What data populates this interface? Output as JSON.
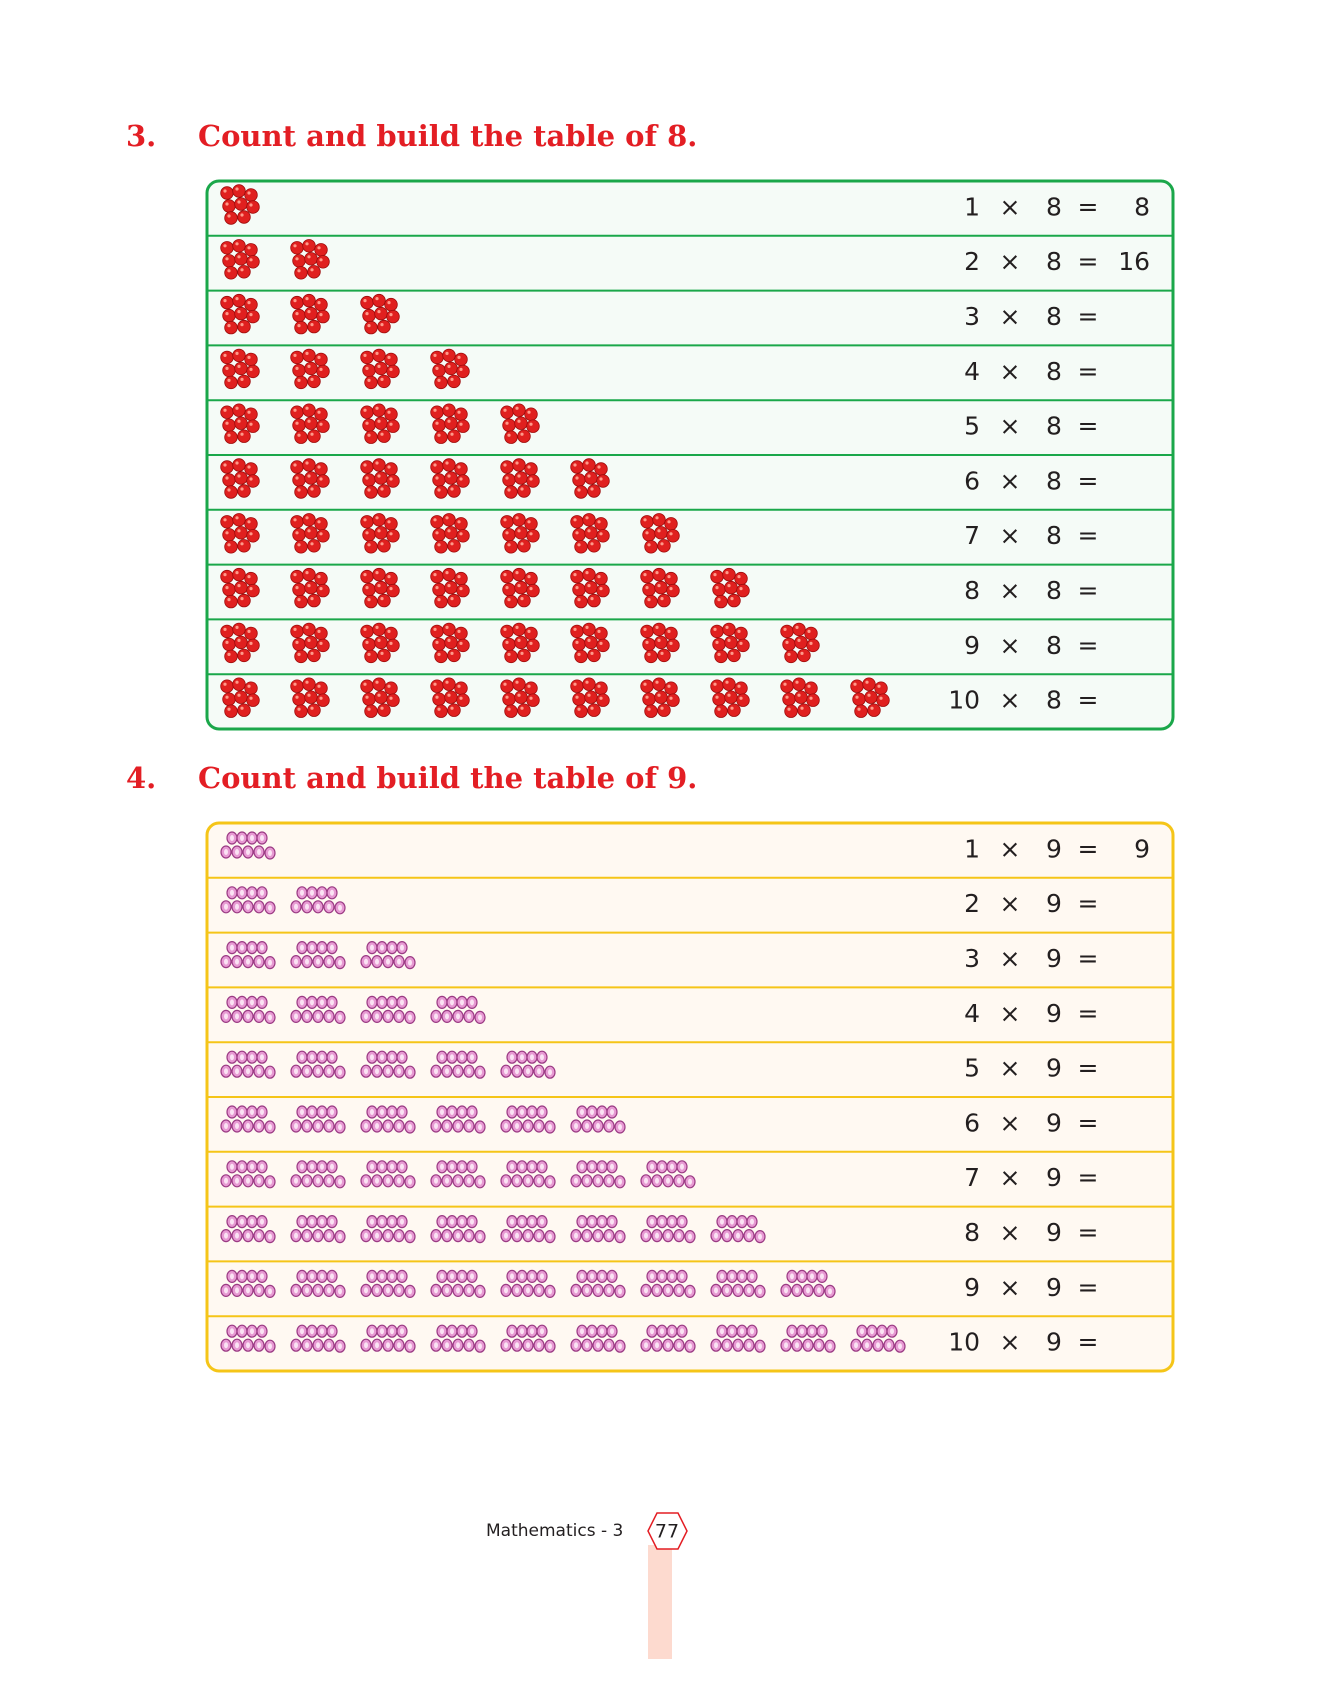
{
  "sections": [
    {
      "number": "3.",
      "title": "Count and build the table of 8.",
      "operator": "×",
      "equals": "=",
      "rows": [
        {
          "a": 1,
          "b": 8,
          "answer": 8
        },
        {
          "a": 2,
          "b": 8,
          "answer": 16
        },
        {
          "a": 3,
          "b": 8
        },
        {
          "a": 4,
          "b": 8
        },
        {
          "a": 5,
          "b": 8
        },
        {
          "a": 6,
          "b": 8
        },
        {
          "a": 7,
          "b": 8
        },
        {
          "a": 8,
          "b": 8
        },
        {
          "a": 9,
          "b": 8
        },
        {
          "a": 10,
          "b": 8
        }
      ]
    },
    {
      "number": "4.",
      "title": "Count and build the table of 9.",
      "operator": "×",
      "equals": "=",
      "rows": [
        {
          "a": 1,
          "b": 9,
          "answer": 9
        },
        {
          "a": 2,
          "b": 9
        },
        {
          "a": 3,
          "b": 9
        },
        {
          "a": 4,
          "b": 9
        },
        {
          "a": 5,
          "b": 9
        },
        {
          "a": 6,
          "b": 9
        },
        {
          "a": 7,
          "b": 9
        },
        {
          "a": 8,
          "b": 9
        },
        {
          "a": 9,
          "b": 9
        },
        {
          "a": 10,
          "b": 9
        }
      ]
    }
  ],
  "footer": {
    "book": "Mathematics - 3",
    "page": "77"
  }
}
